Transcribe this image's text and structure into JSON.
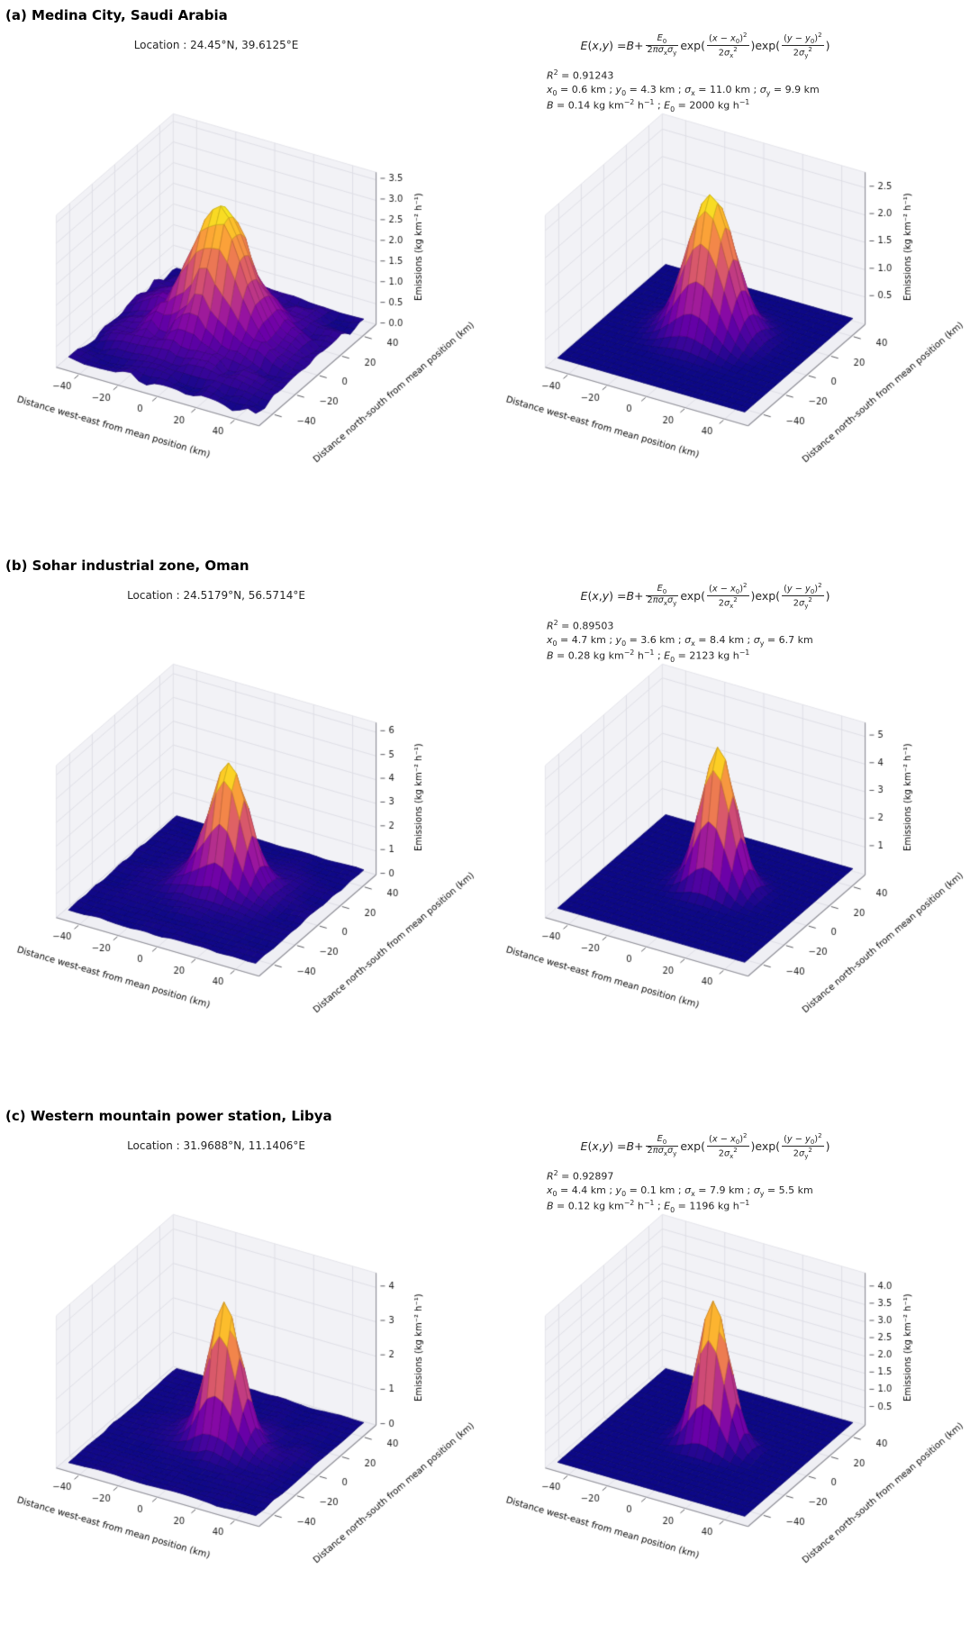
{
  "equation_tokens": [
    {
      "i": "E"
    },
    {
      "t": "("
    },
    {
      "i": "x"
    },
    {
      "t": ", "
    },
    {
      "i": "y"
    },
    {
      "t": ") = "
    },
    {
      "i": "B"
    },
    {
      "t": " + "
    },
    {
      "frac": {
        "num": [
          {
            "i": "E"
          },
          {
            "sub": "0"
          }
        ],
        "den": [
          {
            "t": "2"
          },
          {
            "i": "π"
          },
          {
            "i": "σ"
          },
          {
            "sub": "x"
          },
          {
            "i": "σ"
          },
          {
            "sub": "y"
          }
        ]
      }
    },
    {
      "t": "exp("
    },
    {
      "frac": {
        "num": [
          {
            "t": "("
          },
          {
            "i": "x"
          },
          {
            "t": " − "
          },
          {
            "i": "x"
          },
          {
            "sub": "0"
          },
          {
            "t": ")"
          },
          {
            "sup": "2"
          }
        ],
        "den": [
          {
            "t": "2"
          },
          {
            "i": "σ"
          },
          {
            "sub": "x"
          },
          {
            "sup": "2"
          }
        ]
      }
    },
    {
      "t": ")exp("
    },
    {
      "frac": {
        "num": [
          {
            "t": "("
          },
          {
            "i": "y"
          },
          {
            "t": " − "
          },
          {
            "i": "y"
          },
          {
            "sub": "0"
          },
          {
            "t": ")"
          },
          {
            "sup": "2"
          }
        ],
        "den": [
          {
            "t": "2"
          },
          {
            "i": "σ"
          },
          {
            "sub": "y"
          },
          {
            "sup": "2"
          }
        ]
      }
    },
    {
      "t": ")"
    }
  ],
  "sections": [
    {
      "label": "(a) Medina City, Saudi Arabia",
      "location": "Location : 24.45°N, 39.6125°E",
      "stats_tokens": [
        [
          {
            "i": "R"
          },
          {
            "sup": "2"
          },
          {
            "t": " = 0.91243"
          }
        ],
        [
          {
            "i": "x"
          },
          {
            "sub": "0"
          },
          {
            "t": " = 0.6 km ; "
          },
          {
            "i": "y"
          },
          {
            "sub": "0"
          },
          {
            "t": " = 4.3 km ; "
          },
          {
            "i": "σ"
          },
          {
            "sub": "x"
          },
          {
            "t": " = 11.0 km ; "
          },
          {
            "i": "σ"
          },
          {
            "sub": "y"
          },
          {
            "t": " = 9.9 km"
          }
        ],
        [
          {
            "i": "B"
          },
          {
            "t": " = 0.14 kg km"
          },
          {
            "sup": "−2"
          },
          {
            "t": " h"
          },
          {
            "sup": "−1"
          },
          {
            "t": " ; "
          },
          {
            "i": "E"
          },
          {
            "sub": "0"
          },
          {
            "t": " = 2000 kg h"
          },
          {
            "sup": "−1"
          }
        ]
      ]
    },
    {
      "label": "(b) Sohar industrial zone, Oman",
      "location": "Location : 24.5179°N, 56.5714°E",
      "stats_tokens": [
        [
          {
            "i": "R"
          },
          {
            "sup": "2"
          },
          {
            "t": " = 0.89503"
          }
        ],
        [
          {
            "i": "x"
          },
          {
            "sub": "0"
          },
          {
            "t": " = 4.7 km ; "
          },
          {
            "i": "y"
          },
          {
            "sub": "0"
          },
          {
            "t": " = 3.6 km ; "
          },
          {
            "i": "σ"
          },
          {
            "sub": "x"
          },
          {
            "t": " = 8.4 km ; "
          },
          {
            "i": "σ"
          },
          {
            "sub": "y"
          },
          {
            "t": " = 6.7 km"
          }
        ],
        [
          {
            "i": "B"
          },
          {
            "t": " = 0.28 kg km"
          },
          {
            "sup": "−2"
          },
          {
            "t": " h"
          },
          {
            "sup": "−1"
          },
          {
            "t": " ; "
          },
          {
            "i": "E"
          },
          {
            "sub": "0"
          },
          {
            "t": " = 2123 kg h"
          },
          {
            "sup": "−1"
          }
        ]
      ]
    },
    {
      "label": "(c) Western mountain power station, Libya",
      "location": "Location : 31.9688°N, 11.1406°E",
      "stats_tokens": [
        [
          {
            "i": "R"
          },
          {
            "sup": "2"
          },
          {
            "t": " = 0.92897"
          }
        ],
        [
          {
            "i": "x"
          },
          {
            "sub": "0"
          },
          {
            "t": " = 4.4 km ; "
          },
          {
            "i": "y"
          },
          {
            "sub": "0"
          },
          {
            "t": " = 0.1 km ; "
          },
          {
            "i": "σ"
          },
          {
            "sub": "x"
          },
          {
            "t": " = 7.9 km ; "
          },
          {
            "i": "σ"
          },
          {
            "sub": "y"
          },
          {
            "t": " = 5.5 km"
          }
        ],
        [
          {
            "i": "B"
          },
          {
            "t": " = 0.12 kg km"
          },
          {
            "sup": "−2"
          },
          {
            "t": " h"
          },
          {
            "sup": "−1"
          },
          {
            "t": " ; "
          },
          {
            "i": "E"
          },
          {
            "sub": "0"
          },
          {
            "t": " = 1196 kg h"
          },
          {
            "sup": "−1"
          }
        ]
      ]
    }
  ],
  "chart_data": [
    {
      "panel": "a",
      "kind": "observed",
      "type": "surface",
      "xlabel": "Distance west-east from mean position (km)",
      "ylabel": "Distance north-south from mean position (km)",
      "zlabel": "Emissions (kg km⁻² h⁻¹)",
      "xticks": [
        -40,
        -20,
        0,
        20,
        40
      ],
      "xtick_labels": [
        "−40",
        "−20",
        "0",
        "20",
        "40"
      ],
      "yticks": [
        -40,
        -20,
        0,
        20,
        40
      ],
      "ytick_labels": [
        "−40",
        "−20",
        "0",
        "20",
        "40"
      ],
      "zticks": [
        0,
        0.5,
        1,
        1.5,
        2,
        2.5,
        3,
        3.5
      ],
      "ztick_labels": [
        "0.0",
        "0.5",
        "1.0",
        "1.5",
        "2.0",
        "2.5",
        "3.0",
        "3.5"
      ],
      "zlim": 3.68,
      "xy_range_km": [
        -48,
        48
      ],
      "colormap": "plasma",
      "surface": {
        "B": 0.14,
        "peak": 3.5,
        "x0": 0.6,
        "y0": 4.3,
        "sigma_x": 11.0,
        "sigma_y": 9.9,
        "skirt": 0.5,
        "skirt_scale": 2.1,
        "noise": 0.3,
        "seed": 11
      }
    },
    {
      "panel": "a",
      "kind": "fitted",
      "type": "surface",
      "xlabel": "Distance west-east from mean position (km)",
      "ylabel": "Distance north-south from mean position (km)",
      "zlabel": "Emissions (kg km⁻² h⁻¹)",
      "xticks": [
        -40,
        -20,
        0,
        20,
        40
      ],
      "xtick_labels": [
        "−40",
        "−20",
        "0",
        "20",
        "40"
      ],
      "yticks": [
        -40,
        -20,
        0,
        20,
        40
      ],
      "ytick_labels": [
        "−40",
        "−20",
        "0",
        "20",
        "40"
      ],
      "zticks": [
        0.5,
        1,
        1.5,
        2,
        2.5
      ],
      "ztick_labels": [
        "0.5",
        "1.0",
        "1.5",
        "2.0",
        "2.5"
      ],
      "zlim": 2.78,
      "xy_range_km": [
        -48,
        48
      ],
      "colormap": "plasma",
      "fit": {
        "R2": 0.91243,
        "x0_km": 0.6,
        "y0_km": 4.3,
        "sigma_x_km": 11.0,
        "sigma_y_km": 9.9,
        "B_kg_km2_h": 0.14,
        "E0_kg_h": 2000
      },
      "surface": {
        "B": 0.14,
        "peak": 2.7,
        "x0": 0.6,
        "y0": 4.3,
        "sigma_x": 11.0,
        "sigma_y": 9.9,
        "skirt": 0,
        "skirt_scale": 2,
        "noise": 0,
        "seed": 0
      }
    },
    {
      "panel": "b",
      "kind": "observed",
      "type": "surface",
      "xlabel": "Distance west-east from mean position (km)",
      "ylabel": "Distance north-south from mean position (km)",
      "zlabel": "Emissions (kg km⁻² h⁻¹)",
      "xticks": [
        -40,
        -20,
        0,
        20,
        40
      ],
      "xtick_labels": [
        "−40",
        "−20",
        "0",
        "20",
        "40"
      ],
      "yticks": [
        -40,
        -20,
        0,
        20,
        40
      ],
      "ytick_labels": [
        "−40",
        "−20",
        "0",
        "20",
        "40"
      ],
      "zticks": [
        0,
        1,
        2,
        3,
        4,
        5,
        6
      ],
      "ztick_labels": [
        "0",
        "1",
        "2",
        "3",
        "4",
        "5",
        "6"
      ],
      "zlim": 6.4,
      "xy_range_km": [
        -48,
        48
      ],
      "colormap": "plasma",
      "surface": {
        "B": 0.28,
        "peak": 6.1,
        "x0": 4.7,
        "y0": 3.6,
        "sigma_x": 8.4,
        "sigma_y": 6.7,
        "skirt": 0.25,
        "skirt_scale": 2.0,
        "noise": 0.18,
        "seed": 23
      }
    },
    {
      "panel": "b",
      "kind": "fitted",
      "type": "surface",
      "xlabel": "Distance west-east from mean position (km)",
      "ylabel": "Distance north-south from mean position (km)",
      "zlabel": "Emissions (kg km⁻² h⁻¹)",
      "xticks": [
        -40,
        -20,
        0,
        20,
        40
      ],
      "xtick_labels": [
        "−40",
        "−20",
        "0",
        "20",
        "40"
      ],
      "yticks": [
        -40,
        -20,
        0,
        20,
        40
      ],
      "ytick_labels": [
        "−40",
        "−20",
        "0",
        "20",
        "40"
      ],
      "zticks": [
        1,
        2,
        3,
        4,
        5
      ],
      "ztick_labels": [
        "1",
        "2",
        "3",
        "4",
        "5"
      ],
      "zlim": 5.5,
      "xy_range_km": [
        -48,
        48
      ],
      "colormap": "plasma",
      "fit": {
        "R2": 0.89503,
        "x0_km": 4.7,
        "y0_km": 3.6,
        "sigma_x_km": 8.4,
        "sigma_y_km": 6.7,
        "B_kg_km2_h": 0.28,
        "E0_kg_h": 2123
      },
      "surface": {
        "B": 0.28,
        "peak": 5.35,
        "x0": 4.7,
        "y0": 3.6,
        "sigma_x": 8.4,
        "sigma_y": 6.7,
        "skirt": 0,
        "skirt_scale": 2,
        "noise": 0,
        "seed": 0
      }
    },
    {
      "panel": "c",
      "kind": "observed",
      "type": "surface",
      "xlabel": "Distance west-east from mean position (km)",
      "ylabel": "Distance north-south from mean position (km)",
      "zlabel": "Emissions (kg km⁻² h⁻¹)",
      "xticks": [
        -40,
        -20,
        0,
        20,
        40
      ],
      "xtick_labels": [
        "−40",
        "−20",
        "0",
        "20",
        "40"
      ],
      "yticks": [
        -40,
        -20,
        0,
        20,
        40
      ],
      "ytick_labels": [
        "−40",
        "−20",
        "0",
        "20",
        "40"
      ],
      "zticks": [
        0,
        1,
        2,
        3,
        4
      ],
      "ztick_labels": [
        "0",
        "1",
        "2",
        "3",
        "4"
      ],
      "zlim": 4.42,
      "xy_range_km": [
        -48,
        48
      ],
      "colormap": "plasma",
      "surface": {
        "B": 0.12,
        "peak": 4.25,
        "x0": 4.4,
        "y0": 0.1,
        "sigma_x": 7.9,
        "sigma_y": 5.5,
        "skirt": 0.22,
        "skirt_scale": 2.0,
        "noise": 0.14,
        "seed": 37
      }
    },
    {
      "panel": "c",
      "kind": "fitted",
      "type": "surface",
      "xlabel": "Distance west-east from mean position (km)",
      "ylabel": "Distance north-south from mean position (km)",
      "zlabel": "Emissions (kg km⁻² h⁻¹)",
      "xticks": [
        -40,
        -20,
        0,
        20,
        40
      ],
      "xtick_labels": [
        "−40",
        "−20",
        "0",
        "20",
        "40"
      ],
      "yticks": [
        -40,
        -20,
        0,
        20,
        40
      ],
      "ytick_labels": [
        "−40",
        "−20",
        "0",
        "20",
        "40"
      ],
      "zticks": [
        0.5,
        1,
        1.5,
        2,
        2.5,
        3,
        3.5,
        4
      ],
      "ztick_labels": [
        "0.5",
        "1.0",
        "1.5",
        "2.0",
        "2.5",
        "3.0",
        "3.5",
        "4.0"
      ],
      "zlim": 4.42,
      "xy_range_km": [
        -48,
        48
      ],
      "colormap": "plasma",
      "fit": {
        "R2": 0.92897,
        "x0_km": 4.4,
        "y0_km": 0.1,
        "sigma_x_km": 7.9,
        "sigma_y_km": 5.5,
        "B_kg_km2_h": 0.12,
        "E0_kg_h": 1196
      },
      "surface": {
        "B": 0.12,
        "peak": 4.3,
        "x0": 4.4,
        "y0": 0.1,
        "sigma_x": 7.9,
        "sigma_y": 5.5,
        "skirt": 0,
        "skirt_scale": 2,
        "noise": 0,
        "seed": 0
      }
    }
  ]
}
